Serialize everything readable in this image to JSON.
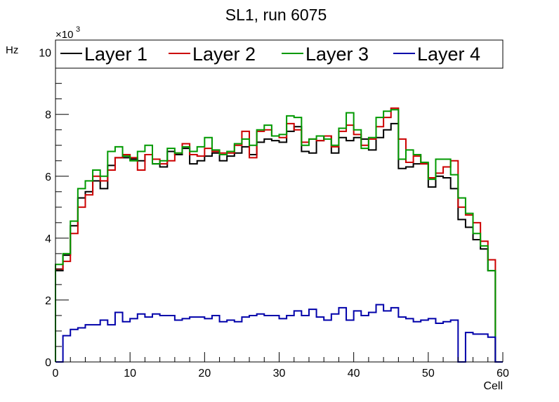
{
  "chart_data": {
    "type": "line",
    "title": "SL1, run 6075",
    "xlabel": "Cell",
    "ylabel": "Hz",
    "y_multiplier": "×10",
    "y_multiplier_exp": "3",
    "xlim": [
      0,
      60
    ],
    "ylim": [
      0,
      10.4
    ],
    "x_ticks": [
      0,
      10,
      20,
      30,
      40,
      50,
      60
    ],
    "y_ticks": [
      0,
      2,
      4,
      6,
      8,
      10
    ],
    "legend_position": "top",
    "style": "step histogram",
    "bin_edges_start": 0,
    "bin_width": 1,
    "series": [
      {
        "name": "Layer 1",
        "color": "#000000",
        "values": [
          2.95,
          3.45,
          4.4,
          5.3,
          5.5,
          5.85,
          5.6,
          6.35,
          6.6,
          6.6,
          6.55,
          6.5,
          6.7,
          6.4,
          6.3,
          6.8,
          6.7,
          6.9,
          6.4,
          6.5,
          6.65,
          6.75,
          6.5,
          6.65,
          6.75,
          6.95,
          6.7,
          7.1,
          7.2,
          7.15,
          7.1,
          7.45,
          7.6,
          6.8,
          6.75,
          7.15,
          7.3,
          6.75,
          7.25,
          7.15,
          7.25,
          7.2,
          6.85,
          7.25,
          7.5,
          7.7,
          6.25,
          6.3,
          6.4,
          6.4,
          5.65,
          6.0,
          5.95,
          5.6,
          4.6,
          4.35,
          3.95,
          3.65,
          2.95,
          0.0
        ]
      },
      {
        "name": "Layer 2",
        "color": "#cc0000",
        "values": [
          3.0,
          3.25,
          4.15,
          5.0,
          5.4,
          6.0,
          5.85,
          6.2,
          6.6,
          6.7,
          6.6,
          6.2,
          6.7,
          6.55,
          6.4,
          6.5,
          6.75,
          7.05,
          6.7,
          6.65,
          6.9,
          6.8,
          6.75,
          6.75,
          7.0,
          7.45,
          6.6,
          7.45,
          7.5,
          7.3,
          7.25,
          7.7,
          7.5,
          7.1,
          7.2,
          7.15,
          7.3,
          6.95,
          7.45,
          7.65,
          7.35,
          7.0,
          7.2,
          7.6,
          7.9,
          8.2,
          7.2,
          6.45,
          6.65,
          6.4,
          5.95,
          6.1,
          6.3,
          6.5,
          5.0,
          4.75,
          4.5,
          3.9,
          3.3,
          0.0
        ]
      },
      {
        "name": "Layer 3",
        "color": "#009900",
        "values": [
          3.15,
          3.5,
          4.55,
          5.6,
          5.85,
          6.2,
          6.0,
          6.8,
          6.95,
          6.65,
          6.5,
          6.8,
          7.0,
          6.4,
          6.5,
          6.9,
          6.75,
          6.95,
          6.8,
          6.95,
          7.25,
          6.85,
          6.7,
          6.8,
          7.05,
          7.2,
          7.0,
          7.5,
          7.65,
          7.3,
          7.35,
          7.95,
          7.9,
          7.0,
          7.2,
          7.3,
          7.2,
          7.0,
          7.55,
          8.05,
          7.5,
          6.9,
          7.25,
          7.9,
          8.1,
          8.15,
          6.55,
          6.85,
          6.7,
          6.45,
          5.9,
          6.55,
          6.55,
          6.05,
          5.3,
          4.8,
          4.15,
          3.75,
          2.95,
          0.0
        ]
      },
      {
        "name": "Layer 4",
        "color": "#0000aa",
        "values": [
          0.0,
          0.85,
          1.05,
          1.1,
          1.2,
          1.2,
          1.35,
          1.2,
          1.6,
          1.3,
          1.4,
          1.55,
          1.45,
          1.55,
          1.5,
          1.5,
          1.35,
          1.4,
          1.45,
          1.45,
          1.4,
          1.5,
          1.3,
          1.35,
          1.3,
          1.45,
          1.5,
          1.55,
          1.5,
          1.5,
          1.4,
          1.5,
          1.65,
          1.5,
          1.7,
          1.45,
          1.35,
          1.55,
          1.75,
          1.35,
          1.65,
          1.5,
          1.6,
          1.85,
          1.65,
          1.75,
          1.45,
          1.4,
          1.3,
          1.35,
          1.4,
          1.25,
          1.3,
          1.35,
          0.0,
          0.95,
          0.9,
          0.9,
          0.8,
          0.0
        ]
      }
    ]
  }
}
